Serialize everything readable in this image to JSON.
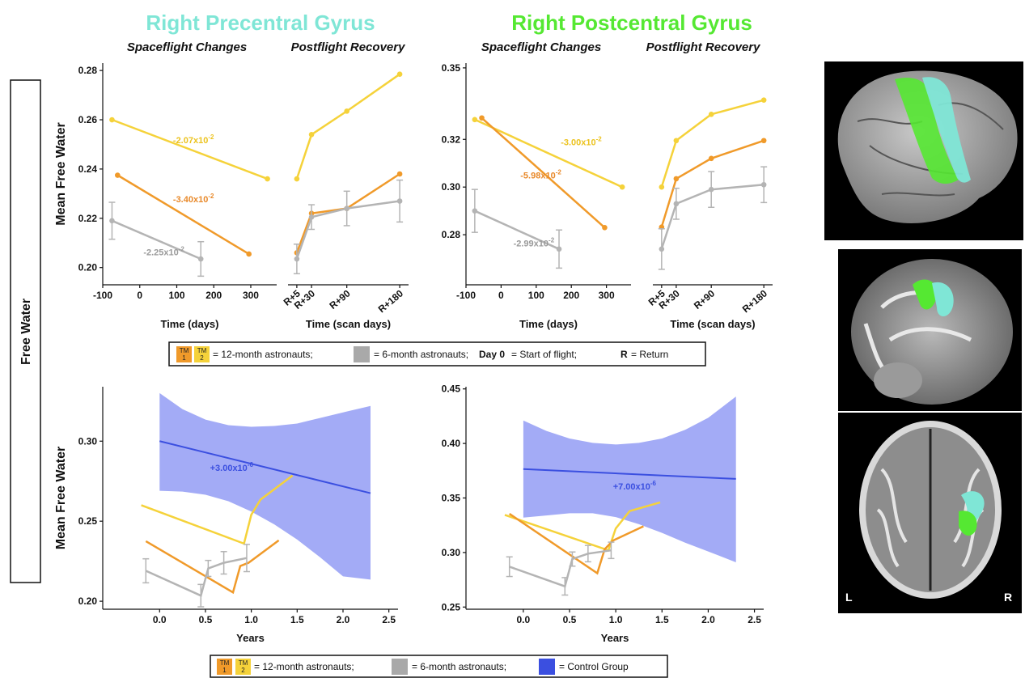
{
  "titles": {
    "precentral": "Right Precentral Gyrus",
    "postcentral": "Right Postcentral Gyrus",
    "spaceflight": "Spaceflight Changes",
    "postflight": "Postflight Recovery",
    "side_label": "Free Water"
  },
  "colors": {
    "precentral": "#7fe6d6",
    "postcentral": "#55e832",
    "tm1": "#f09a2a",
    "tm2": "#f5d23a",
    "six_month": "#b4b4b4",
    "control": "#3b4fe0",
    "control_band": "#9ea6f5"
  },
  "legend_top": {
    "tm1": "TM\n1",
    "tm2": "TM\n2",
    "twelve_text": "= 12-month astronauts;",
    "six_text": "= 6-month astronauts;",
    "day0_bold": "Day 0",
    "day0_text": "= Start of flight;",
    "r_bold": "R",
    "r_text": "= Return"
  },
  "legend_bottom": {
    "tm1": "TM\n1",
    "tm2": "TM\n2",
    "twelve_text": "= 12-month astronauts;",
    "six_text": "= 6-month astronauts;",
    "control_text": "= Control Group"
  },
  "brain": {
    "left": "L",
    "right": "R"
  },
  "chart_data": [
    {
      "id": "pre_spaceflight",
      "type": "line",
      "title": "Spaceflight Changes",
      "xlabel": "Time (days)",
      "ylabel": "Mean Free Water",
      "xlim": [
        -100,
        370
      ],
      "ylim": [
        0.193,
        0.283
      ],
      "xticks": [
        -100,
        0,
        100,
        200,
        300
      ],
      "xtick_labels": [
        "-100",
        "0",
        "100",
        "200",
        "300"
      ],
      "yticks": [
        0.2,
        0.22,
        0.24,
        0.26,
        0.28
      ],
      "ytick_labels": [
        "0.20",
        "0.22",
        "0.24",
        "0.26",
        "0.28"
      ],
      "series": [
        {
          "group": "tm2",
          "x": [
            -75,
            345
          ],
          "y": [
            0.26,
            0.236
          ]
        },
        {
          "group": "tm1",
          "x": [
            -60,
            295
          ],
          "y": [
            0.2375,
            0.2055
          ]
        },
        {
          "group": "six",
          "x": [
            -75,
            165
          ],
          "y": [
            0.219,
            0.2035
          ],
          "err": [
            0.0075,
            0.007
          ]
        }
      ],
      "annotations": [
        {
          "group": "tm2",
          "text": "-2.07x10",
          "exp": "-2",
          "x": 90,
          "y": 0.2505
        },
        {
          "group": "tm1",
          "text": "-3.40x10",
          "exp": "-2",
          "x": 90,
          "y": 0.2265
        },
        {
          "group": "six",
          "text": "-2.25x10",
          "exp": "-2",
          "x": 10,
          "y": 0.205
        }
      ]
    },
    {
      "id": "pre_postflight",
      "type": "line",
      "title": "Postflight Recovery",
      "xlabel": "Time (scan days)",
      "xlim": [
        -10,
        195
      ],
      "ylim": [
        0.193,
        0.283
      ],
      "xticks": [
        5,
        30,
        90,
        180
      ],
      "xtick_labels": [
        "R+5",
        "R+30",
        "R+90",
        "R+180"
      ],
      "series": [
        {
          "group": "tm2",
          "x": [
            5,
            30,
            90,
            180
          ],
          "y": [
            0.236,
            0.254,
            0.2635,
            0.2785
          ]
        },
        {
          "group": "tm1",
          "x": [
            5,
            30,
            90,
            180
          ],
          "y": [
            0.206,
            0.222,
            0.224,
            0.238
          ]
        },
        {
          "group": "six",
          "x": [
            5,
            30,
            90,
            180
          ],
          "y": [
            0.2035,
            0.2205,
            0.224,
            0.227
          ],
          "err": [
            0.006,
            0.005,
            0.007,
            0.0085
          ]
        }
      ]
    },
    {
      "id": "post_spaceflight",
      "type": "line",
      "title": "Spaceflight Changes",
      "xlabel": "Time (days)",
      "xlim": [
        -100,
        370
      ],
      "ylim": [
        0.259,
        0.352
      ],
      "xticks": [
        -100,
        0,
        100,
        200,
        300
      ],
      "xtick_labels": [
        "-100",
        "0",
        "100",
        "200",
        "300"
      ],
      "yticks": [
        0.28,
        0.3,
        0.32,
        0.35
      ],
      "ytick_labels": [
        "0.28",
        "0.30",
        "0.32",
        "0.35"
      ],
      "series": [
        {
          "group": "tm2",
          "x": [
            -75,
            345
          ],
          "y": [
            0.3283,
            0.3
          ]
        },
        {
          "group": "tm1",
          "x": [
            -55,
            295
          ],
          "y": [
            0.329,
            0.283
          ]
        },
        {
          "group": "six",
          "x": [
            -75,
            165
          ],
          "y": [
            0.29,
            0.274
          ],
          "err": [
            0.009,
            0.008
          ]
        }
      ],
      "annotations": [
        {
          "group": "tm2",
          "text": "-3.00x10",
          "exp": "-2",
          "x": 170,
          "y": 0.3176
        },
        {
          "group": "tm1",
          "text": "-5.98x10",
          "exp": "-2",
          "x": 55,
          "y": 0.3036
        },
        {
          "group": "six",
          "text": "-2.99x10",
          "exp": "-2",
          "x": 35,
          "y": 0.2752
        }
      ]
    },
    {
      "id": "post_postflight",
      "type": "line",
      "title": "Postflight Recovery",
      "xlabel": "Time (scan days)",
      "xlim": [
        -10,
        195
      ],
      "ylim": [
        0.259,
        0.352
      ],
      "xticks": [
        5,
        30,
        90,
        180
      ],
      "xtick_labels": [
        "R+5",
        "R+30",
        "R+90",
        "R+180"
      ],
      "series": [
        {
          "group": "tm2",
          "x": [
            5,
            30,
            90,
            180
          ],
          "y": [
            0.3,
            0.3195,
            0.3305,
            0.3365
          ]
        },
        {
          "group": "tm1",
          "x": [
            5,
            30,
            90,
            180
          ],
          "y": [
            0.2832,
            0.3035,
            0.312,
            0.3195
          ]
        },
        {
          "group": "six",
          "x": [
            5,
            30,
            90,
            180
          ],
          "y": [
            0.274,
            0.293,
            0.299,
            0.301
          ],
          "err": [
            0.0085,
            0.0065,
            0.0075,
            0.0075
          ]
        }
      ]
    },
    {
      "id": "pre_longitudinal",
      "type": "line",
      "xlabel": "Years",
      "ylabel": "Mean Free Water",
      "xlim": [
        -0.62,
        2.6
      ],
      "ylim": [
        0.195,
        0.334
      ],
      "xticks": [
        0,
        0.5,
        1,
        1.5,
        2,
        2.5
      ],
      "xtick_labels": [
        "0.0",
        "0.5",
        "1.0",
        "1.5",
        "2.0",
        "2.5"
      ],
      "yticks": [
        0.2,
        0.25,
        0.3
      ],
      "ytick_labels": [
        "0.20",
        "0.25",
        "0.30"
      ],
      "control": {
        "line": {
          "x": [
            0,
            2.3
          ],
          "y": [
            0.3,
            0.2675
          ]
        },
        "band_x": [
          0,
          0.25,
          0.5,
          0.75,
          1.0,
          1.25,
          1.5,
          1.75,
          2.0,
          2.3
        ],
        "band_upper": [
          0.33,
          0.32,
          0.3135,
          0.31,
          0.309,
          0.3095,
          0.311,
          0.3145,
          0.318,
          0.322
        ],
        "band_lower": [
          0.269,
          0.2685,
          0.2665,
          0.2625,
          0.256,
          0.248,
          0.2385,
          0.2275,
          0.2155,
          0.2135
        ],
        "annotation": {
          "text": "+3.00x10",
          "exp": "-6",
          "x": 0.55,
          "y": 0.2815
        }
      },
      "series": [
        {
          "group": "tm2",
          "x": [
            -0.2,
            0.92,
            1.0,
            1.1,
            1.45
          ],
          "y": [
            0.26,
            0.236,
            0.254,
            0.2635,
            0.2785
          ]
        },
        {
          "group": "tm1",
          "x": [
            -0.15,
            0.8,
            0.88,
            0.97,
            1.3
          ],
          "y": [
            0.2375,
            0.2055,
            0.222,
            0.224,
            0.238
          ]
        },
        {
          "group": "six",
          "x": [
            -0.15,
            0.45,
            0.53,
            0.7,
            0.95
          ],
          "y": [
            0.219,
            0.2035,
            0.2205,
            0.224,
            0.227
          ],
          "err": [
            0.0075,
            0.007,
            0.005,
            0.007,
            0.0085
          ]
        }
      ]
    },
    {
      "id": "post_longitudinal",
      "type": "line",
      "xlabel": "Years",
      "xlim": [
        -0.62,
        2.6
      ],
      "ylim": [
        0.248,
        0.452
      ],
      "xticks": [
        0,
        0.5,
        1,
        1.5,
        2,
        2.5
      ],
      "xtick_labels": [
        "0.0",
        "0.5",
        "1.0",
        "1.5",
        "2.0",
        "2.5"
      ],
      "yticks": [
        0.25,
        0.3,
        0.35,
        0.4,
        0.45
      ],
      "ytick_labels": [
        "0.25",
        "0.30",
        "0.35",
        "0.40",
        "0.45"
      ],
      "control": {
        "line": {
          "x": [
            0,
            2.3
          ],
          "y": [
            0.3765,
            0.3675
          ]
        },
        "band_x": [
          0,
          0.25,
          0.5,
          0.75,
          1.0,
          1.25,
          1.5,
          1.75,
          2.0,
          2.3
        ],
        "band_upper": [
          0.421,
          0.4115,
          0.4045,
          0.4005,
          0.399,
          0.4005,
          0.4045,
          0.4125,
          0.4235,
          0.443
        ],
        "band_lower": [
          0.332,
          0.334,
          0.336,
          0.336,
          0.3325,
          0.326,
          0.318,
          0.309,
          0.301,
          0.291
        ],
        "annotation": {
          "text": "+7.00x10",
          "exp": "-6",
          "x": 0.97,
          "y": 0.3578
        }
      },
      "series": [
        {
          "group": "tm2",
          "x": [
            -0.2,
            0.92,
            1.0,
            1.15,
            1.48
          ],
          "y": [
            0.3345,
            0.302,
            0.322,
            0.338,
            0.346
          ]
        },
        {
          "group": "tm1",
          "x": [
            -0.15,
            0.8,
            0.88,
            0.97,
            1.3
          ],
          "y": [
            0.3355,
            0.281,
            0.303,
            0.311,
            0.324
          ]
        },
        {
          "group": "six",
          "x": [
            -0.15,
            0.45,
            0.53,
            0.7,
            0.95
          ],
          "y": [
            0.287,
            0.269,
            0.294,
            0.299,
            0.302
          ],
          "err": [
            0.009,
            0.008,
            0.0065,
            0.0075,
            0.0075
          ]
        }
      ]
    }
  ]
}
